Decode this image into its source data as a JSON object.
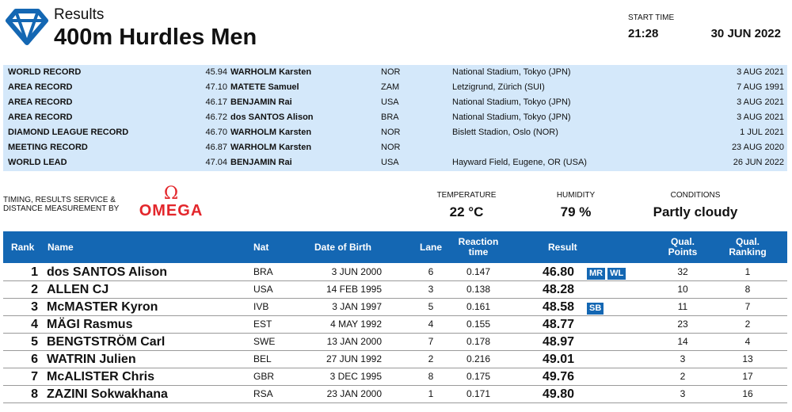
{
  "header": {
    "subtitle": "Results",
    "title": "400m Hurdles Men",
    "start_time_label": "START TIME",
    "start_time": "21:28",
    "date": "30 JUN 2022"
  },
  "records": [
    {
      "label": "WORLD RECORD",
      "mark": "45.94",
      "name": "WARHOLM Karsten",
      "nat": "NOR",
      "venue": "National Stadium, Tokyo (JPN)",
      "date": "3 AUG 2021"
    },
    {
      "label": "AREA RECORD",
      "mark": "47.10",
      "name": "MATETE Samuel",
      "nat": "ZAM",
      "venue": "Letzigrund, Zürich (SUI)",
      "date": "7 AUG 1991"
    },
    {
      "label": "AREA RECORD",
      "mark": "46.17",
      "name": "BENJAMIN Rai",
      "nat": "USA",
      "venue": "National Stadium, Tokyo (JPN)",
      "date": "3 AUG 2021"
    },
    {
      "label": "AREA RECORD",
      "mark": "46.72",
      "name": "dos SANTOS Alison",
      "nat": "BRA",
      "venue": "National Stadium, Tokyo (JPN)",
      "date": "3 AUG 2021"
    },
    {
      "label": "DIAMOND LEAGUE RECORD",
      "mark": "46.70",
      "name": "WARHOLM Karsten",
      "nat": "NOR",
      "venue": "Bislett Stadion, Oslo (NOR)",
      "date": "1 JUL 2021"
    },
    {
      "label": "MEETING RECORD",
      "mark": "46.87",
      "name": "WARHOLM Karsten",
      "nat": "NOR",
      "venue": "",
      "date": "23 AUG 2020"
    },
    {
      "label": "WORLD LEAD",
      "mark": "47.04",
      "name": "BENJAMIN Rai",
      "nat": "USA",
      "venue": "Hayward Field, Eugene, OR (USA)",
      "date": "26 JUN 2022"
    }
  ],
  "info": {
    "timing_text": "TIMING, RESULTS SERVICE & DISTANCE MEASUREMENT BY",
    "sponsor_symbol": "Ω",
    "sponsor": "OMEGA",
    "temperature_label": "TEMPERATURE",
    "temperature": "22 °C",
    "humidity_label": "HUMIDITY",
    "humidity": "79 %",
    "conditions_label": "CONDITIONS",
    "conditions": "Partly cloudy"
  },
  "table": {
    "headers": {
      "rank": "Rank",
      "name": "Name",
      "nat": "Nat",
      "dob": "Date of Birth",
      "lane": "Lane",
      "reaction": "Reaction time",
      "result": "Result",
      "qual_points": "Qual. Points",
      "qual_ranking": "Qual. Ranking"
    },
    "rows": [
      {
        "rank": "1",
        "name": "dos SANTOS Alison",
        "nat": "BRA",
        "dob": "3 JUN 2000",
        "lane": "6",
        "reaction": "0.147",
        "result": "46.80",
        "badges": [
          "MR",
          "WL"
        ],
        "qual_points": "32",
        "qual_ranking": "1"
      },
      {
        "rank": "2",
        "name": "ALLEN CJ",
        "nat": "USA",
        "dob": "14 FEB 1995",
        "lane": "3",
        "reaction": "0.138",
        "result": "48.28",
        "badges": [],
        "qual_points": "10",
        "qual_ranking": "8"
      },
      {
        "rank": "3",
        "name": "McMASTER Kyron",
        "nat": "IVB",
        "dob": "3 JAN 1997",
        "lane": "5",
        "reaction": "0.161",
        "result": "48.58",
        "badges": [
          "SB"
        ],
        "qual_points": "11",
        "qual_ranking": "7"
      },
      {
        "rank": "4",
        "name": "MÄGI Rasmus",
        "nat": "EST",
        "dob": "4 MAY 1992",
        "lane": "4",
        "reaction": "0.155",
        "result": "48.77",
        "badges": [],
        "qual_points": "23",
        "qual_ranking": "2"
      },
      {
        "rank": "5",
        "name": "BENGTSTRÖM Carl",
        "nat": "SWE",
        "dob": "13 JAN 2000",
        "lane": "7",
        "reaction": "0.178",
        "result": "48.97",
        "badges": [],
        "qual_points": "14",
        "qual_ranking": "4"
      },
      {
        "rank": "6",
        "name": "WATRIN Julien",
        "nat": "BEL",
        "dob": "27 JUN 1992",
        "lane": "2",
        "reaction": "0.216",
        "result": "49.01",
        "badges": [],
        "qual_points": "3",
        "qual_ranking": "13"
      },
      {
        "rank": "7",
        "name": "McALISTER Chris",
        "nat": "GBR",
        "dob": "3 DEC 1995",
        "lane": "8",
        "reaction": "0.175",
        "result": "49.76",
        "badges": [],
        "qual_points": "2",
        "qual_ranking": "17"
      },
      {
        "rank": "8",
        "name": "ZAZINI Sokwakhana",
        "nat": "RSA",
        "dob": "23 JAN 2000",
        "lane": "1",
        "reaction": "0.171",
        "result": "49.80",
        "badges": [],
        "qual_points": "3",
        "qual_ranking": "16"
      }
    ]
  },
  "colors": {
    "accent": "#1467b3",
    "record_bg": "#d4e8fa",
    "omega_red": "#e3262b"
  }
}
